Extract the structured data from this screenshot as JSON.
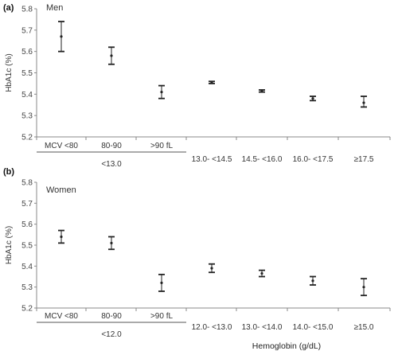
{
  "chart_data": [
    {
      "type": "scatter",
      "panel_label": "(a)",
      "title": "Men",
      "ylabel": "HbA1c (%)",
      "xlabel": "",
      "ylim": [
        5.2,
        5.8
      ],
      "yticks": [
        "5.2",
        "5.3",
        "5.4",
        "5.5",
        "5.6",
        "5.7",
        "5.8"
      ],
      "categories": [
        "MCV <80",
        "80-90",
        ">90 fL",
        "13.0- <14.5",
        "14.5- <16.0",
        "16.0- <17.5",
        "≥17.5"
      ],
      "group_label": "<13.0",
      "series": [
        {
          "values": [
            5.67,
            5.58,
            5.41,
            5.455,
            5.415,
            5.38,
            5.36
          ],
          "lower": [
            5.6,
            5.54,
            5.38,
            5.45,
            5.41,
            5.37,
            5.34
          ],
          "upper": [
            5.74,
            5.62,
            5.44,
            5.46,
            5.42,
            5.39,
            5.39
          ]
        }
      ]
    },
    {
      "type": "scatter",
      "panel_label": "(b)",
      "title": "Women",
      "ylabel": "HbA1c (%)",
      "xlabel": "Hemoglobin (g/dL)",
      "ylim": [
        5.2,
        5.8
      ],
      "yticks": [
        "5.2",
        "5.3",
        "5.4",
        "5.5",
        "5.6",
        "5.7",
        "5.8"
      ],
      "categories": [
        "MCV <80",
        "80-90",
        ">90 fL",
        "12.0- <13.0",
        "13.0- <14.0",
        "14.0- <15.0",
        "≥15.0"
      ],
      "group_label": "<12.0",
      "series": [
        {
          "values": [
            5.54,
            5.51,
            5.32,
            5.39,
            5.365,
            5.33,
            5.3
          ],
          "lower": [
            5.51,
            5.48,
            5.28,
            5.37,
            5.35,
            5.31,
            5.26
          ],
          "upper": [
            5.57,
            5.54,
            5.36,
            5.41,
            5.38,
            5.35,
            5.34
          ]
        }
      ]
    }
  ]
}
